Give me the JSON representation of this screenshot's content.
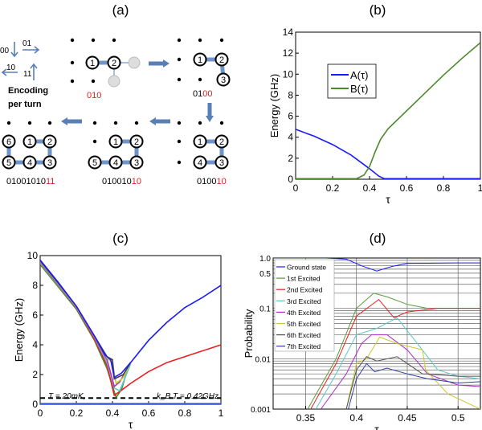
{
  "panel_labels": [
    "(a)",
    "(b)",
    "(c)",
    "(d)"
  ],
  "panel_a": {
    "encoding_legend": {
      "codes": [
        "00",
        "01",
        "10",
        "11"
      ],
      "caption_line1": "Encoding",
      "caption_line2": "per turn"
    },
    "steps": [
      {
        "black": "",
        "red": "010"
      },
      {
        "black": "01",
        "red": "00"
      },
      {
        "black": "0100",
        "red": "10"
      },
      {
        "black": "010010",
        "red": "10"
      },
      {
        "black": "01001010",
        "red": "11"
      }
    ],
    "colors": {
      "bond": "#6f94c8",
      "arrow": "#5a7fb5",
      "red_text": "#e02020"
    }
  },
  "chart_data": [
    {
      "id": "b",
      "type": "line",
      "title": "(b)",
      "xlabel": "τ",
      "ylabel": "Energy (GHz)",
      "xlim": [
        0,
        1
      ],
      "ylim": [
        0,
        14
      ],
      "grid": false,
      "legend": "upper-left-center",
      "xticks": [
        "0",
        "0.2",
        "0.4",
        "0.6",
        "0.8",
        "1"
      ],
      "yticks": [
        "0",
        "2",
        "4",
        "6",
        "8",
        "10",
        "12",
        "14"
      ],
      "series": [
        {
          "name": "A(τ)",
          "color": "#1a1aff",
          "points": [
            [
              0,
              4.75
            ],
            [
              0.1,
              4.1
            ],
            [
              0.2,
              3.3
            ],
            [
              0.3,
              2.3
            ],
            [
              0.4,
              1.0
            ],
            [
              0.45,
              0.3
            ],
            [
              0.48,
              0.05
            ],
            [
              1,
              0.05
            ]
          ]
        },
        {
          "name": "B(τ)",
          "color": "#4a8a2a",
          "points": [
            [
              0,
              0.05
            ],
            [
              0.33,
              0.05
            ],
            [
              0.37,
              0.4
            ],
            [
              0.4,
              1.2
            ],
            [
              0.43,
              2.6
            ],
            [
              0.46,
              3.8
            ],
            [
              0.5,
              4.8
            ],
            [
              0.6,
              6.5
            ],
            [
              0.7,
              8.2
            ],
            [
              0.8,
              9.9
            ],
            [
              0.9,
              11.5
            ],
            [
              1,
              13
            ]
          ]
        }
      ]
    },
    {
      "id": "c",
      "type": "line",
      "title": "(c)",
      "xlabel": "τ",
      "ylabel": "Energy (GHz)",
      "xlim": [
        0,
        1
      ],
      "ylim": [
        0,
        10
      ],
      "grid": false,
      "xticks": [
        "0",
        "0.2",
        "0.4",
        "0.6",
        "0.8",
        "1"
      ],
      "yticks": [
        "0",
        "2",
        "4",
        "6",
        "8",
        "10"
      ],
      "annotation_left": "T = 20mK,",
      "annotation_right": "k_B T = 0.42GHz",
      "threshold": 0.42,
      "series": [
        {
          "color": "#3b6bff",
          "points": [
            [
              0,
              0.05
            ],
            [
              1,
              0.05
            ]
          ]
        },
        {
          "color": "#4a8a2a",
          "points": [
            [
              0,
              9.4
            ],
            [
              0.1,
              7.9
            ],
            [
              0.2,
              6.4
            ],
            [
              0.3,
              4.3
            ],
            [
              0.37,
              2.4
            ],
            [
              0.42,
              0.45
            ],
            [
              0.45,
              1.0
            ],
            [
              0.48,
              2.2
            ]
          ]
        },
        {
          "color": "#e82020",
          "points": [
            [
              0,
              9.5
            ],
            [
              0.1,
              8.0
            ],
            [
              0.2,
              6.5
            ],
            [
              0.3,
              4.4
            ],
            [
              0.37,
              2.6
            ],
            [
              0.41,
              0.6
            ],
            [
              0.45,
              0.95
            ],
            [
              0.5,
              1.4
            ],
            [
              0.6,
              2.2
            ],
            [
              0.7,
              2.8
            ],
            [
              0.8,
              3.2
            ],
            [
              0.9,
              3.6
            ],
            [
              1,
              4.0
            ]
          ]
        },
        {
          "color": "#5cc8c8",
          "points": [
            [
              0,
              9.5
            ],
            [
              0.1,
              8.0
            ],
            [
              0.2,
              6.5
            ],
            [
              0.3,
              4.5
            ],
            [
              0.37,
              2.8
            ],
            [
              0.41,
              1.1
            ],
            [
              0.44,
              0.9
            ],
            [
              0.5,
              2.7
            ]
          ]
        },
        {
          "color": "#b030c8",
          "points": [
            [
              0,
              9.55
            ],
            [
              0.1,
              8.05
            ],
            [
              0.2,
              6.5
            ],
            [
              0.3,
              4.5
            ],
            [
              0.37,
              3.0
            ],
            [
              0.41,
              1.2
            ],
            [
              0.44,
              1.5
            ],
            [
              0.5,
              2.8
            ]
          ]
        },
        {
          "color": "#c8c830",
          "points": [
            [
              0,
              9.6
            ],
            [
              0.1,
              8.1
            ],
            [
              0.2,
              6.55
            ],
            [
              0.3,
              4.55
            ],
            [
              0.37,
              3.1
            ],
            [
              0.4,
              2.8
            ],
            [
              0.42,
              1.4
            ],
            [
              0.46,
              1.8
            ],
            [
              0.5,
              2.8
            ]
          ]
        },
        {
          "color": "#404040",
          "points": [
            [
              0,
              9.65
            ],
            [
              0.1,
              8.15
            ],
            [
              0.2,
              6.6
            ],
            [
              0.3,
              4.6
            ],
            [
              0.37,
              3.2
            ],
            [
              0.4,
              3.0
            ],
            [
              0.41,
              1.7
            ],
            [
              0.46,
              2.0
            ],
            [
              0.5,
              2.8
            ]
          ]
        },
        {
          "color": "#1a1aff",
          "points": [
            [
              0,
              9.7
            ],
            [
              0.1,
              8.2
            ],
            [
              0.2,
              6.6
            ],
            [
              0.3,
              4.6
            ],
            [
              0.36,
              3.3
            ],
            [
              0.39,
              3.0
            ],
            [
              0.41,
              1.8
            ],
            [
              0.45,
              2.1
            ],
            [
              0.5,
              2.8
            ],
            [
              0.6,
              4.3
            ],
            [
              0.7,
              5.5
            ],
            [
              0.8,
              6.5
            ],
            [
              0.9,
              7.2
            ],
            [
              1,
              8.0
            ]
          ]
        }
      ]
    },
    {
      "id": "d",
      "type": "line",
      "title": "(d)",
      "xlabel": "τ",
      "ylabel": "Probability",
      "xlim": [
        0.318,
        0.522
      ],
      "ylim": [
        0.001,
        1.0
      ],
      "yscale": "log",
      "grid": true,
      "legend": "upper-left",
      "xticks": [
        "0.35",
        "0.4",
        "0.45",
        "0.5"
      ],
      "yticks": [
        "0.001",
        "0.01",
        "0.1",
        "0.5",
        "1.0"
      ],
      "series": [
        {
          "name": "Ground state",
          "color": "#1a1aff",
          "points": [
            [
              0.318,
              1.0
            ],
            [
              0.37,
              1.0
            ],
            [
              0.39,
              0.95
            ],
            [
              0.405,
              0.7
            ],
            [
              0.42,
              0.55
            ],
            [
              0.435,
              0.68
            ],
            [
              0.45,
              0.78
            ],
            [
              0.5,
              0.8
            ],
            [
              0.522,
              0.8
            ]
          ]
        },
        {
          "name": "1st Excited",
          "color": "#5a9a3a",
          "points": [
            [
              0.352,
              0.001
            ],
            [
              0.38,
              0.01
            ],
            [
              0.4,
              0.1
            ],
            [
              0.417,
              0.2
            ],
            [
              0.43,
              0.17
            ],
            [
              0.45,
              0.12
            ],
            [
              0.47,
              0.1
            ],
            [
              0.522,
              0.1
            ]
          ]
        },
        {
          "name": "2nd Excited",
          "color": "#e82020",
          "points": [
            [
              0.355,
              0.001
            ],
            [
              0.38,
              0.008
            ],
            [
              0.4,
              0.07
            ],
            [
              0.422,
              0.15
            ],
            [
              0.437,
              0.065
            ],
            [
              0.45,
              0.085
            ],
            [
              0.48,
              0.1
            ],
            [
              0.522,
              0.1
            ]
          ]
        },
        {
          "name": "3rd Excited",
          "color": "#5cc8c8",
          "points": [
            [
              0.36,
              0.001
            ],
            [
              0.38,
              0.005
            ],
            [
              0.4,
              0.03
            ],
            [
              0.42,
              0.04
            ],
            [
              0.44,
              0.065
            ],
            [
              0.46,
              0.02
            ],
            [
              0.48,
              0.006
            ],
            [
              0.5,
              0.0045
            ],
            [
              0.522,
              0.004
            ]
          ]
        },
        {
          "name": "4th Excited",
          "color": "#b030c8",
          "points": [
            [
              0.365,
              0.001
            ],
            [
              0.39,
              0.005
            ],
            [
              0.405,
              0.02
            ],
            [
              0.415,
              0.03
            ],
            [
              0.43,
              0.03
            ],
            [
              0.45,
              0.015
            ],
            [
              0.47,
              0.005
            ],
            [
              0.5,
              0.003
            ],
            [
              0.522,
              0.0028
            ]
          ]
        },
        {
          "name": "5th Excited",
          "color": "#c8c830",
          "points": [
            [
              0.39,
              0.001
            ],
            [
              0.4,
              0.008
            ],
            [
              0.41,
              0.01
            ],
            [
              0.423,
              0.027
            ],
            [
              0.44,
              0.02
            ],
            [
              0.465,
              0.015
            ],
            [
              0.468,
              0.006
            ],
            [
              0.49,
              0.002
            ],
            [
              0.522,
              0.001
            ]
          ]
        },
        {
          "name": "6th Excited",
          "color": "#505050",
          "points": [
            [
              0.39,
              0.001
            ],
            [
              0.4,
              0.006
            ],
            [
              0.41,
              0.011
            ],
            [
              0.42,
              0.009
            ],
            [
              0.44,
              0.011
            ],
            [
              0.465,
              0.005
            ],
            [
              0.47,
              0.005
            ],
            [
              0.5,
              0.0045
            ],
            [
              0.522,
              0.0045
            ]
          ]
        },
        {
          "name": "7th Excited",
          "color": "#3040a0",
          "points": [
            [
              0.392,
              0.001
            ],
            [
              0.4,
              0.004
            ],
            [
              0.41,
              0.008
            ],
            [
              0.418,
              0.0055
            ],
            [
              0.43,
              0.0065
            ],
            [
              0.45,
              0.005
            ],
            [
              0.47,
              0.004
            ],
            [
              0.5,
              0.0033
            ],
            [
              0.522,
              0.0035
            ]
          ]
        }
      ]
    }
  ]
}
